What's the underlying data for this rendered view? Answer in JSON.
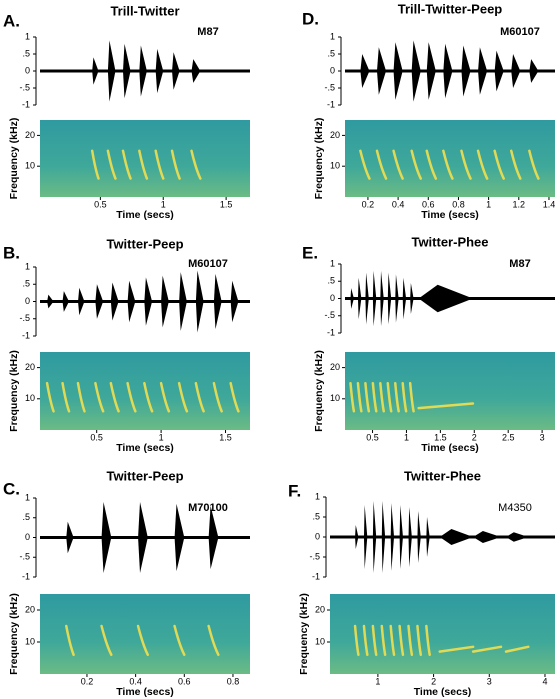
{
  "chart_data": [
    {
      "type": "waveform",
      "label": "A.",
      "title": "Trill-Twitter",
      "subject": "M87",
      "color": "#000000",
      "x": [
        0.46,
        0.59,
        0.71,
        0.84,
        0.97,
        1.1,
        1.26
      ],
      "values": [
        0.4,
        0.9,
        0.8,
        0.75,
        0.65,
        0.55,
        0.35
      ],
      "durations": [
        0.05,
        0.06,
        0.06,
        0.06,
        0.06,
        0.06,
        0.07
      ],
      "ylim": [
        -1,
        1
      ],
      "yticks": [
        1,
        {
          "value": 0.5,
          "label": ".5"
        },
        0,
        {
          "value": -0.5,
          "label": "-.5"
        },
        -1
      ],
      "xlim": [
        0.02,
        1.69
      ],
      "xticks": [
        0.5,
        1,
        1.5
      ],
      "xlabel": "Time (secs)",
      "spectrogram": {
        "ylabel": "Frequency (kHz)",
        "ylim": [
          0,
          25
        ],
        "yticks": [
          10,
          20
        ]
      }
    },
    {
      "type": "waveform",
      "label": "B.",
      "title": "Twitter-Peep",
      "subject": "M60107",
      "color": "#000000",
      "x": [
        0.14,
        0.26,
        0.38,
        0.52,
        0.64,
        0.77,
        0.9,
        1.03,
        1.17,
        1.3,
        1.44,
        1.57
      ],
      "values": [
        0.2,
        0.3,
        0.4,
        0.5,
        0.55,
        0.6,
        0.7,
        0.75,
        0.85,
        0.9,
        0.8,
        0.6
      ],
      "durations": [
        0.05,
        0.05,
        0.05,
        0.06,
        0.06,
        0.06,
        0.06,
        0.06,
        0.06,
        0.06,
        0.06,
        0.06
      ],
      "ylim": [
        -1,
        1
      ],
      "yticks": [
        1,
        {
          "value": 0.5,
          "label": ".5"
        },
        0,
        {
          "value": -0.5,
          "label": "-.5"
        },
        -1
      ],
      "xlim": [
        0.06,
        1.69
      ],
      "xticks": [
        0.5,
        1,
        1.5
      ],
      "xlabel": "Time (secs)",
      "spectrogram": {
        "ylabel": "Frequency (kHz)",
        "ylim": [
          0,
          25
        ],
        "yticks": [
          10,
          20
        ]
      }
    },
    {
      "type": "waveform",
      "label": "C.",
      "title": "Twitter-Peep",
      "subject": "M70100",
      "color": "#000000",
      "x": [
        0.13,
        0.28,
        0.43,
        0.58,
        0.72
      ],
      "values": [
        0.4,
        0.9,
        0.9,
        0.85,
        0.8
      ],
      "durations": [
        0.03,
        0.04,
        0.04,
        0.04,
        0.04
      ],
      "ylim": [
        -1,
        1
      ],
      "yticks": [
        1,
        {
          "value": 0.5,
          "label": ".5"
        },
        0,
        {
          "value": -0.5,
          "label": "-.5"
        },
        -1
      ],
      "xlim": [
        0.007,
        0.87
      ],
      "xticks": [
        0.2,
        0.4,
        0.6,
        0.8
      ],
      "xlabel": "Time (secs)",
      "spectrogram": {
        "ylabel": "Frequency (kHz)",
        "ylim": [
          0,
          25
        ],
        "yticks": [
          10,
          20
        ]
      }
    },
    {
      "type": "waveform",
      "label": "D.",
      "title": "Trill-Twitter-Peep",
      "subject": "M60107",
      "color": "#000000",
      "x": [
        0.18,
        0.29,
        0.4,
        0.52,
        0.62,
        0.73,
        0.85,
        0.96,
        1.07,
        1.18,
        1.3
      ],
      "values": [
        0.5,
        0.7,
        0.85,
        0.9,
        0.85,
        0.8,
        0.75,
        0.7,
        0.6,
        0.5,
        0.35
      ],
      "durations": [
        0.06,
        0.06,
        0.06,
        0.06,
        0.06,
        0.06,
        0.06,
        0.06,
        0.06,
        0.06,
        0.06
      ],
      "ylim": [
        -1,
        1
      ],
      "yticks": [
        1,
        {
          "value": 0.5,
          "label": ".5"
        },
        0,
        {
          "value": -0.5,
          "label": "-.5"
        },
        -1
      ],
      "xlim": [
        0.048,
        1.44
      ],
      "xticks": [
        0.2,
        0.4,
        0.6,
        0.8,
        1,
        1.2,
        1.4
      ],
      "xlabel": "Time (secs)",
      "spectrogram": {
        "ylabel": "Frequency (kHz)",
        "ylim": [
          0,
          25
        ],
        "yticks": [
          10,
          20
        ]
      }
    },
    {
      "type": "waveform",
      "label": "E.",
      "title": "Twitter-Phee",
      "subject": "M87",
      "color": "#000000",
      "x": [
        0.2,
        0.31,
        0.42,
        0.53,
        0.64,
        0.75,
        0.86,
        0.97,
        1.08,
        1.58
      ],
      "values": [
        0.3,
        0.6,
        0.75,
        0.8,
        0.8,
        0.75,
        0.7,
        0.6,
        0.45,
        0.4
      ],
      "durations": [
        0.05,
        0.05,
        0.05,
        0.05,
        0.05,
        0.05,
        0.05,
        0.05,
        0.05,
        0.8
      ],
      "ylim": [
        -1,
        1
      ],
      "yticks": [
        1,
        {
          "value": 0.5,
          "label": ".5"
        },
        0,
        {
          "value": -0.5,
          "label": "-.5"
        },
        -1
      ],
      "xlim": [
        0.094,
        3.19
      ],
      "xticks": [
        0.5,
        1,
        1.5,
        2,
        2.5,
        3
      ],
      "xlabel": "Time (secs)",
      "spectrogram": {
        "ylabel": "Frequency (kHz)",
        "ylim": [
          0,
          25
        ],
        "yticks": [
          10,
          20
        ]
      }
    },
    {
      "type": "waveform",
      "label": "F.",
      "title": "Twitter-Phee",
      "subject": "M4350",
      "color": "#000000",
      "x": [
        0.62,
        0.78,
        0.94,
        1.1,
        1.26,
        1.42,
        1.58,
        1.74,
        1.9,
        2.41,
        2.96,
        3.5
      ],
      "values": [
        0.3,
        0.8,
        0.9,
        0.9,
        0.85,
        0.8,
        0.75,
        0.65,
        0.5,
        0.2,
        0.15,
        0.12
      ],
      "durations": [
        0.06,
        0.06,
        0.06,
        0.06,
        0.06,
        0.06,
        0.06,
        0.06,
        0.06,
        0.6,
        0.5,
        0.4
      ],
      "ylim": [
        -1,
        1
      ],
      "yticks": [
        1,
        {
          "value": 0.5,
          "label": ".5"
        },
        0,
        {
          "value": -0.5,
          "label": "-.5"
        },
        -1
      ],
      "xlim": [
        0.14,
        4.18
      ],
      "xticks": [
        1,
        2,
        3,
        4
      ],
      "xlabel": "Time (secs)",
      "spectrogram": {
        "ylabel": "Frequency (kHz)",
        "ylim": [
          0,
          25
        ],
        "yticks": [
          10,
          20
        ]
      }
    }
  ]
}
